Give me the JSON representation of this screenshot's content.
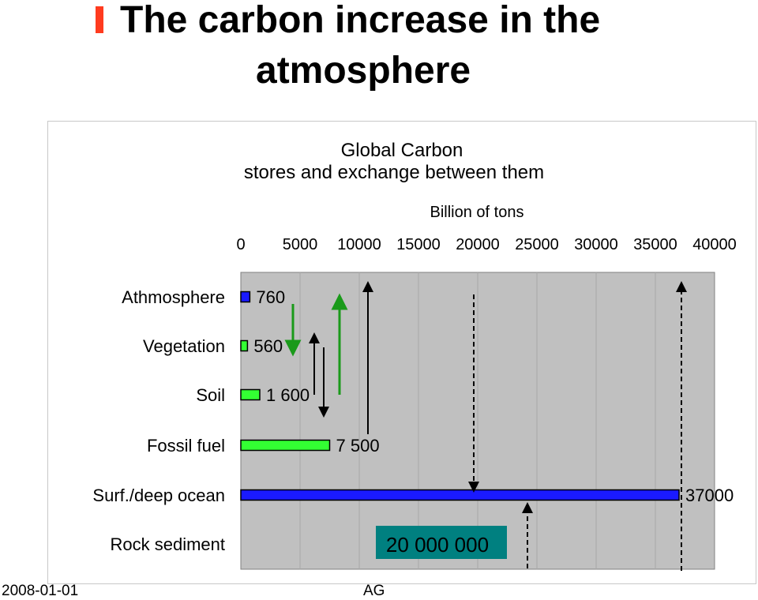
{
  "slide": {
    "title_line1": "The carbon increase in the",
    "title_line2": "atmosphere",
    "footer_date": "2008-01-01",
    "footer_author": "AG",
    "accent_color": "#ff3b1f"
  },
  "chart_data": {
    "type": "bar",
    "orientation": "horizontal",
    "title": "Global Carbon",
    "subtitle": "stores and exchange between them",
    "unit_label": "Billion of tons",
    "xlim": [
      0,
      40000
    ],
    "ticks": [
      0,
      5000,
      10000,
      15000,
      20000,
      25000,
      30000,
      35000,
      40000
    ],
    "tick_labels": [
      "0",
      "5000",
      "10000",
      "15000",
      "20000",
      "25000",
      "30000",
      "35000",
      "40000"
    ],
    "categories": [
      "Athmosphere",
      "Vegetation",
      "Soil",
      "Fossil fuel",
      "Surf./deep ocean",
      "Rock sediment"
    ],
    "values": [
      760,
      560,
      1600,
      7500,
      37000,
      null
    ],
    "value_labels": [
      "760",
      "560",
      "1 600",
      "7 500",
      "37000",
      "20 000 000"
    ],
    "bar_colors": [
      "#1a1aff",
      "#33ff33",
      "#33ff33",
      "#33ff33",
      "#1a1aff",
      "#008080"
    ],
    "grid": true,
    "plot_background": "#c0c0c0"
  }
}
